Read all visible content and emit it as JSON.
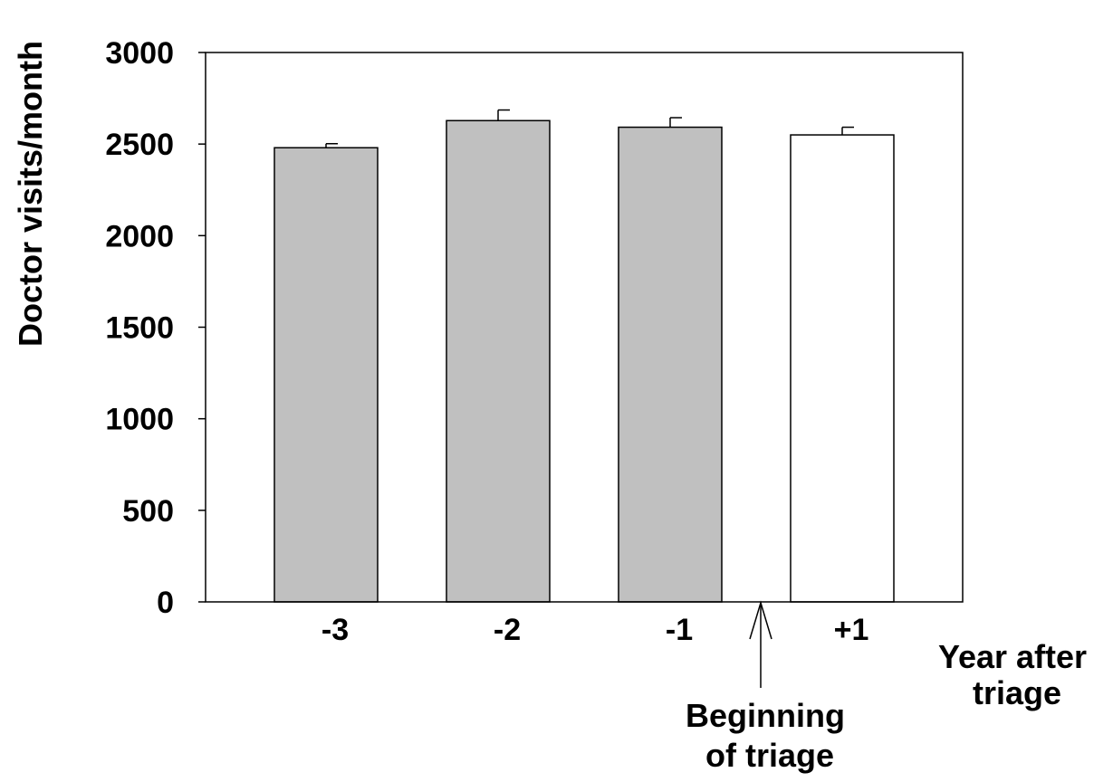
{
  "chart_data": {
    "type": "bar",
    "title": "",
    "ylabel": "Doctor visits/month",
    "xlabel_lines": [
      "Year after",
      "triage"
    ],
    "categories": [
      "-3",
      "-2",
      "-1",
      "+1"
    ],
    "values": [
      2480,
      2628,
      2592,
      2550
    ],
    "error_upper": [
      22,
      58,
      52,
      42
    ],
    "bar_colors": [
      "#c0c0c0",
      "#c0c0c0",
      "#c0c0c0",
      "#ffffff"
    ],
    "ylim": [
      0,
      3000
    ],
    "yticks": [
      0,
      500,
      1000,
      1500,
      2000,
      2500,
      3000
    ],
    "grid": false,
    "annotation": {
      "text_lines": [
        "Beginning",
        "of triage"
      ],
      "marks_between": [
        "-1",
        "+1"
      ]
    }
  }
}
